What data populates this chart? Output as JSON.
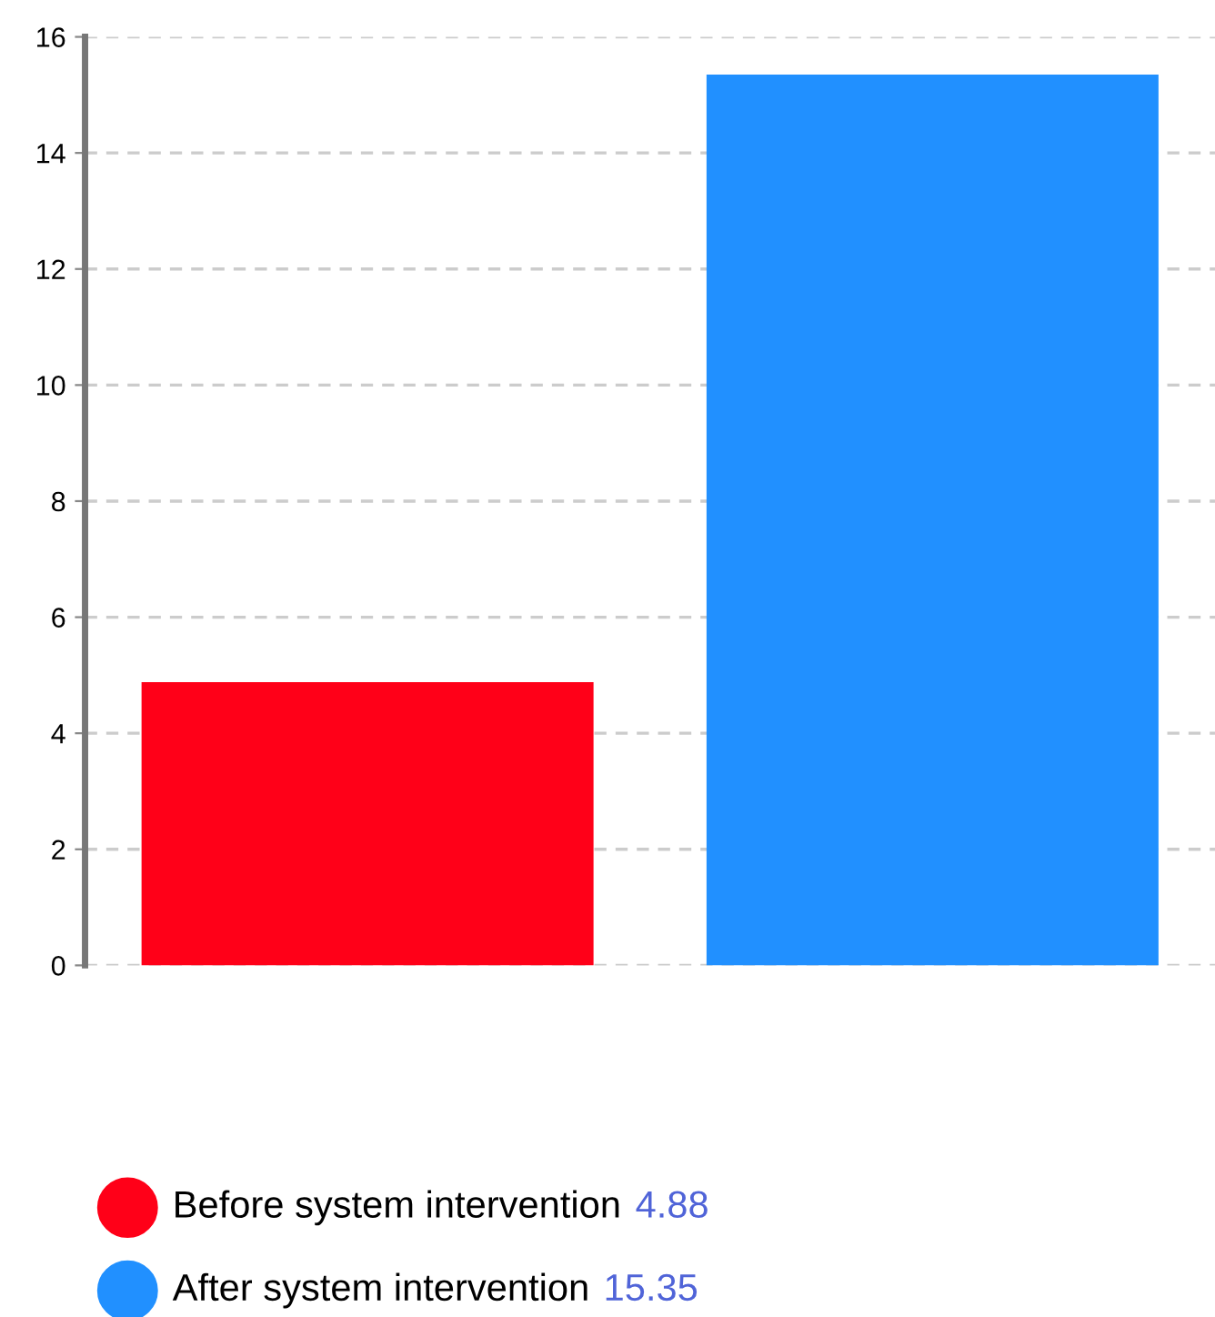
{
  "chart_data": {
    "type": "bar",
    "categories": [
      null,
      null
    ],
    "series": [
      {
        "name": "Before system intervention",
        "color": "#ff0018",
        "values": [
          4.88,
          null
        ]
      },
      {
        "name": "After system intervention",
        "color": "#2190ff",
        "values": [
          null,
          15.35
        ]
      }
    ],
    "annotations": [
      "4.88",
      "15.35"
    ],
    "ylim": [
      0,
      16
    ],
    "yticks": [
      0,
      2,
      4,
      6,
      8,
      10,
      12,
      14,
      16
    ],
    "grid": "y",
    "legend": "bottom",
    "tick_labels": "y"
  }
}
